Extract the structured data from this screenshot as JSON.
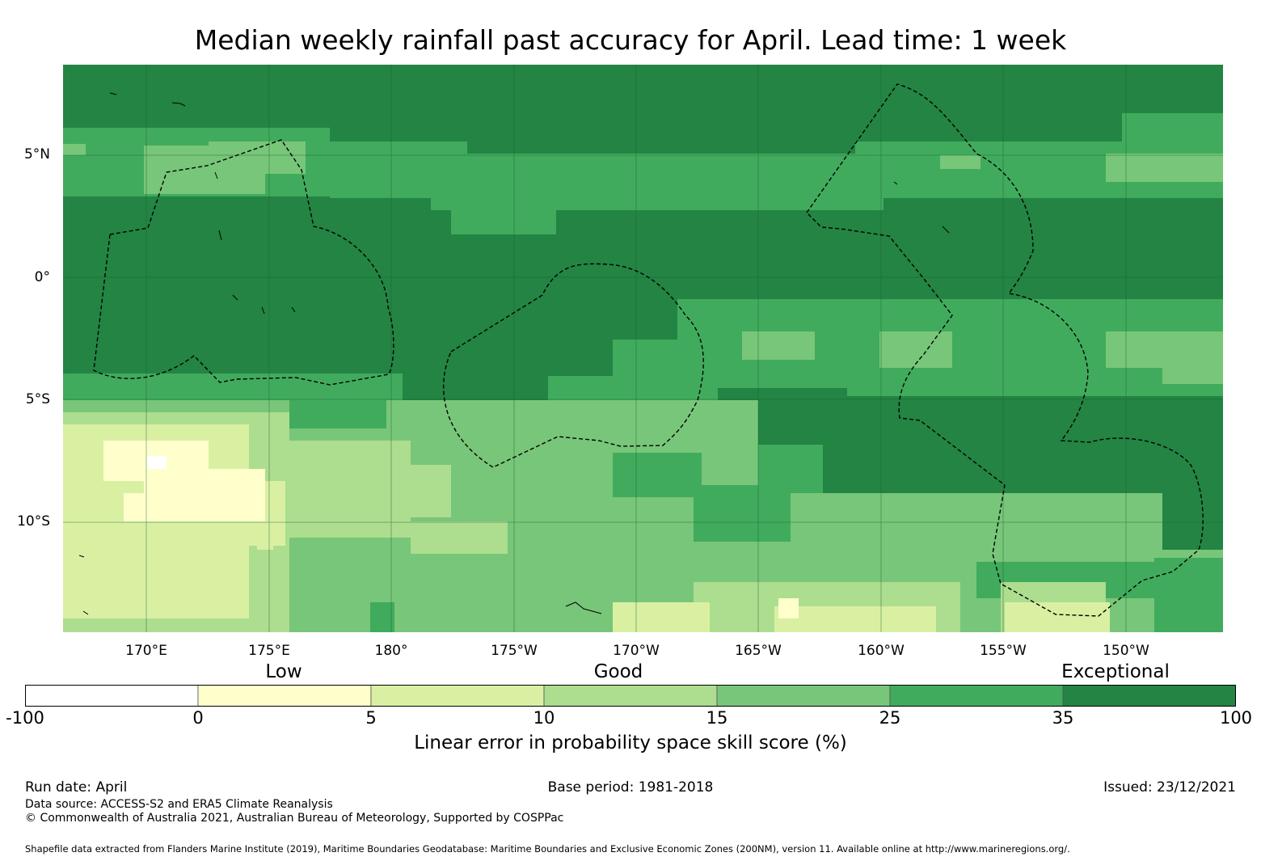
{
  "title": "Median weekly rainfall past accuracy for April. Lead time: 1 week",
  "map": {
    "lat_labels": [
      "5°N",
      "0°",
      "5°S",
      "10°S"
    ],
    "lon_labels": [
      "170°E",
      "175°E",
      "180°",
      "175°W",
      "170°W",
      "165°W",
      "160°W",
      "155°W",
      "150°W"
    ]
  },
  "legend": {
    "categories": [
      "Low",
      "Good",
      "Exceptional"
    ],
    "ticks": [
      "-100",
      "0",
      "5",
      "10",
      "15",
      "25",
      "35",
      "100"
    ],
    "colors": [
      "#ffffff",
      "#ffffcc",
      "#d9f0a3",
      "#addd8e",
      "#78c679",
      "#41ab5d",
      "#238443"
    ],
    "label": "Linear error in probability space skill score (%)"
  },
  "footer": {
    "run_date": "Run date: April",
    "base_period": "Base period: 1981-2018",
    "issued": "Issued: 23/12/2021",
    "data_source": "Data source: ACCESS-S2 and ERA5 Climate Reanalysis",
    "copyright": "© Commonwealth of Australia 2021, Australian Bureau of Meteorology, Supported by COSPPac",
    "shapefile": "Shapefile data extracted from Flanders Marine Institute (2019), Maritime Boundaries Geodatabase: Maritime Boundaries and Exclusive Economic Zones (200NM), version 11. Available online at http://www.marineregions.org/."
  }
}
